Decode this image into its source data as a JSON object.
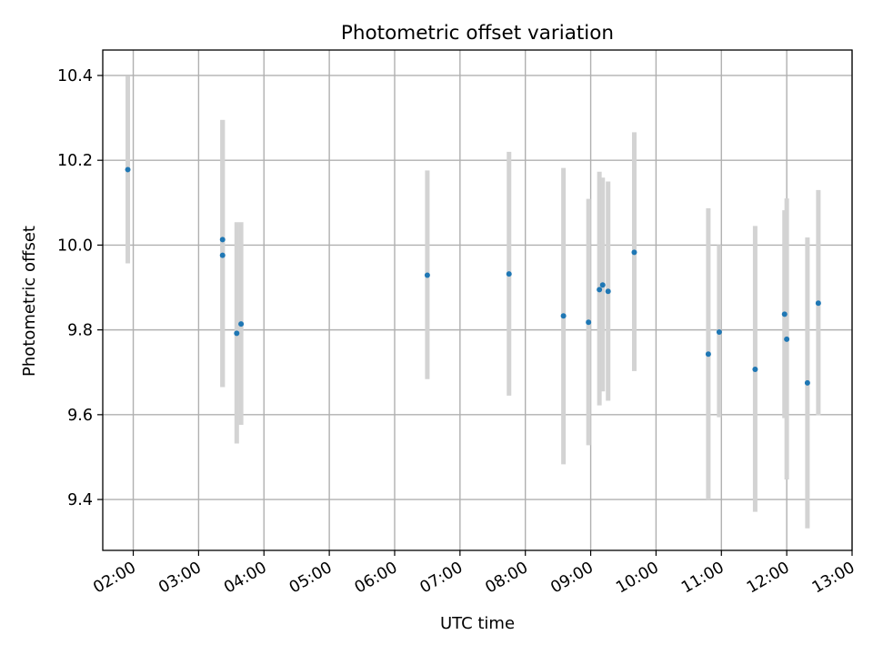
{
  "chart_data": {
    "type": "scatter",
    "title": "Photometric offset variation",
    "xlabel": "UTC time",
    "ylabel": "Photometric offset",
    "xlim": [
      "01:32",
      "13:00"
    ],
    "ylim": [
      9.28,
      10.46
    ],
    "x_ticks": [
      "02:00",
      "03:00",
      "04:00",
      "05:00",
      "06:00",
      "07:00",
      "08:00",
      "09:00",
      "10:00",
      "11:00",
      "12:00",
      "13:00"
    ],
    "y_ticks": [
      9.4,
      9.6,
      9.8,
      10.0,
      10.2,
      10.4
    ],
    "y_tick_labels": [
      "9.4",
      "9.6",
      "9.8",
      "10.0",
      "10.2",
      "10.4"
    ],
    "grid": true,
    "legend": "none",
    "colors": {
      "point": "#1f77b4",
      "error_bar": "#d3d3d3",
      "grid": "#b0b0b0"
    },
    "points": [
      {
        "x": "01:55",
        "y": 10.178,
        "low": 9.957,
        "high": 10.398
      },
      {
        "x": "03:22",
        "y": 10.013,
        "low": 9.665,
        "high": 10.295
      },
      {
        "x": "03:22",
        "y": 9.976,
        "low": 9.665,
        "high": 10.295
      },
      {
        "x": "03:35",
        "y": 9.792,
        "low": 9.532,
        "high": 10.054
      },
      {
        "x": "03:39",
        "y": 9.814,
        "low": 9.576,
        "high": 10.054
      },
      {
        "x": "06:30",
        "y": 9.929,
        "low": 9.684,
        "high": 10.176
      },
      {
        "x": "07:45",
        "y": 9.932,
        "low": 9.645,
        "high": 10.22
      },
      {
        "x": "08:35",
        "y": 9.833,
        "low": 9.483,
        "high": 10.182
      },
      {
        "x": "08:58",
        "y": 9.818,
        "low": 9.528,
        "high": 10.109
      },
      {
        "x": "09:08",
        "y": 9.895,
        "low": 9.622,
        "high": 10.173
      },
      {
        "x": "09:11",
        "y": 9.906,
        "low": 9.655,
        "high": 10.159
      },
      {
        "x": "09:16",
        "y": 9.891,
        "low": 9.633,
        "high": 10.15
      },
      {
        "x": "09:40",
        "y": 9.983,
        "low": 9.703,
        "high": 10.266
      },
      {
        "x": "10:48",
        "y": 9.743,
        "low": 9.4,
        "high": 10.087
      },
      {
        "x": "10:58",
        "y": 9.795,
        "low": 9.594,
        "high": 10.0
      },
      {
        "x": "11:31",
        "y": 9.707,
        "low": 9.371,
        "high": 10.045
      },
      {
        "x": "11:58",
        "y": 9.837,
        "low": 9.592,
        "high": 10.082
      },
      {
        "x": "12:00",
        "y": 9.778,
        "low": 9.447,
        "high": 10.11
      },
      {
        "x": "12:19",
        "y": 9.675,
        "low": 9.332,
        "high": 10.018
      },
      {
        "x": "12:29",
        "y": 9.863,
        "low": 9.599,
        "high": 10.13
      }
    ]
  }
}
